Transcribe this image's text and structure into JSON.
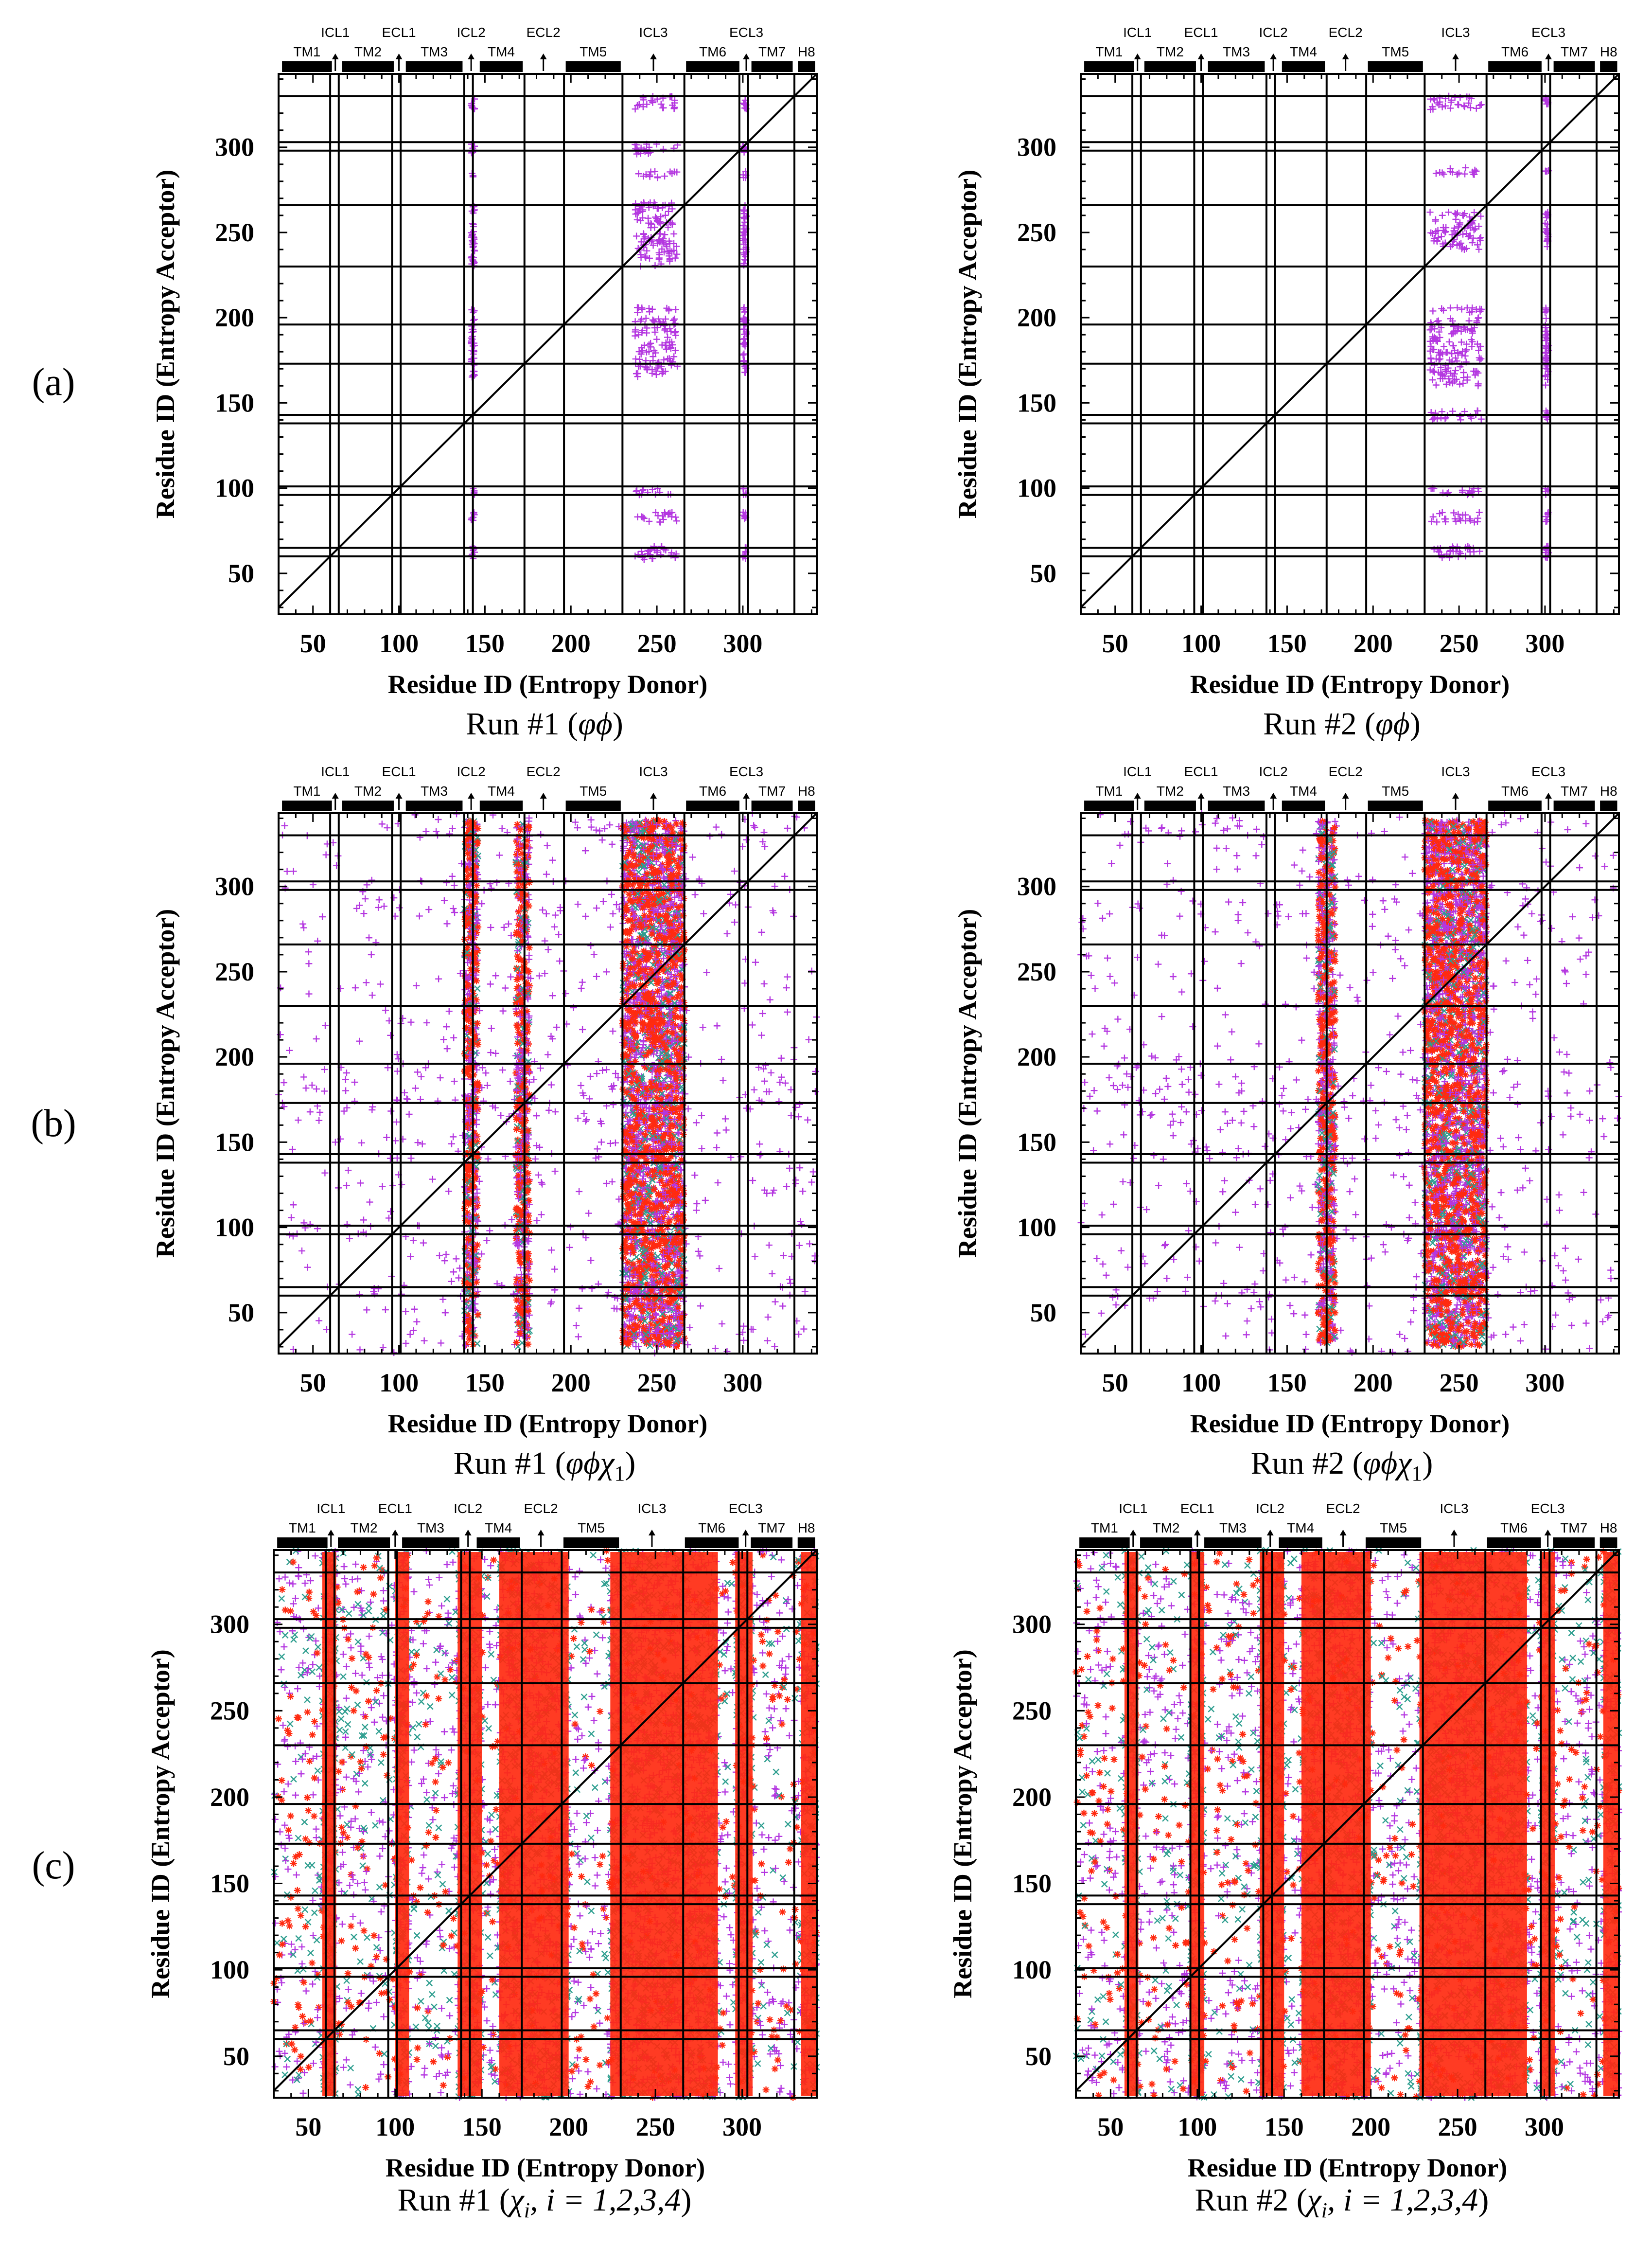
{
  "figure": {
    "markers": {
      "cross_color": "#B437E0",
      "x_color": "#2E9E8F",
      "star_color": "#FF2A10"
    },
    "segment_bar_color": "#000000",
    "shared_axes": {
      "xlabel": "Residue ID (Entropy Donor)",
      "ylabel": "Residue ID (Entropy Acceptor)",
      "xlim": [
        30,
        343
      ],
      "ylim": [
        26,
        343
      ],
      "xticks": [
        50,
        100,
        150,
        200,
        250,
        300
      ],
      "yticks": [
        50,
        100,
        150,
        200,
        250,
        300
      ]
    },
    "segments_bar": [
      {
        "label": "TM1",
        "start": 32,
        "end": 61
      },
      {
        "label": "TM2",
        "start": 67,
        "end": 97
      },
      {
        "label": "TM3",
        "start": 104,
        "end": 137
      },
      {
        "label": "TM4",
        "start": 147,
        "end": 172
      },
      {
        "label": "TM5",
        "start": 197,
        "end": 229
      },
      {
        "label": "TM6",
        "start": 267,
        "end": 298
      },
      {
        "label": "TM7",
        "start": 305,
        "end": 329
      },
      {
        "label": "H8",
        "start": 332,
        "end": 342
      }
    ],
    "segment_arrows": [
      {
        "label": "ICL1",
        "pos": 63
      },
      {
        "label": "ECL1",
        "pos": 100
      },
      {
        "label": "ICL2",
        "pos": 142
      },
      {
        "label": "ECL2",
        "pos": 184
      },
      {
        "label": "ICL3",
        "pos": 248
      },
      {
        "label": "ECL3",
        "pos": 302
      }
    ],
    "boundary_lines": [
      60,
      65,
      96,
      101,
      138,
      143,
      173,
      196,
      230,
      266,
      298,
      303,
      330
    ]
  },
  "chart_data": [
    {
      "type": "scatter",
      "panel": "(a)",
      "title": "Run #1 (φϕ)",
      "xlabel": "Residue ID (Entropy Donor)",
      "ylabel": "Residue ID (Entropy Acceptor)",
      "xlim": [
        30,
        343
      ],
      "ylim": [
        26,
        343
      ],
      "diagonal": true,
      "series": [
        {
          "name": "cross",
          "marker": "+",
          "color": "#B437E0",
          "donor_columns": [
            [
              237,
              262
            ],
            [
              142,
              144
            ],
            [
              300,
              302
            ]
          ],
          "acceptor_rows": [
            [
              58,
              66
            ],
            [
              80,
              86
            ],
            [
              96,
              100
            ],
            [
              165,
              200
            ],
            [
              203,
              206
            ],
            [
              230,
              268
            ],
            [
              282,
              286
            ],
            [
              296,
              302
            ],
            [
              322,
              330
            ]
          ]
        }
      ]
    },
    {
      "type": "scatter",
      "panel": "(a)",
      "title": "Run #2 (φϕ)",
      "xlabel": "Residue ID (Entropy Donor)",
      "ylabel": "Residue ID (Entropy Acceptor)",
      "xlim": [
        30,
        343
      ],
      "ylim": [
        26,
        343
      ],
      "diagonal": true,
      "series": [
        {
          "name": "cross",
          "marker": "+",
          "color": "#B437E0",
          "donor_columns": [
            [
              233,
              263
            ],
            [
              300,
              302
            ]
          ],
          "acceptor_rows": [
            [
              58,
              66
            ],
            [
              80,
              86
            ],
            [
              96,
              100
            ],
            [
              140,
              146
            ],
            [
              160,
              200
            ],
            [
              203,
              206
            ],
            [
              240,
              262
            ],
            [
              284,
              288
            ],
            [
              322,
              330
            ]
          ]
        }
      ]
    },
    {
      "type": "scatter",
      "panel": "(b)",
      "title": "Run #1 (φϕχ1)",
      "xlabel": "Residue ID (Entropy Donor)",
      "ylabel": "Residue ID (Entropy Acceptor)",
      "xlim": [
        30,
        343
      ],
      "ylim": [
        26,
        343
      ],
      "diagonal": true,
      "series": [
        {
          "name": "cross",
          "marker": "+",
          "color": "#B437E0"
        },
        {
          "name": "x",
          "marker": "x",
          "color": "#2E9E8F"
        },
        {
          "name": "star",
          "marker": "*",
          "color": "#FF2A10"
        }
      ],
      "dense_donor_bands": [
        [
          230,
          266
        ],
        [
          138,
          146
        ],
        [
          168,
          176
        ]
      ]
    },
    {
      "type": "scatter",
      "panel": "(b)",
      "title": "Run #2 (φϕχ1)",
      "xlabel": "Residue ID (Entropy Donor)",
      "ylabel": "Residue ID (Entropy Acceptor)",
      "xlim": [
        30,
        343
      ],
      "ylim": [
        26,
        343
      ],
      "diagonal": true,
      "series": [
        {
          "name": "cross",
          "marker": "+",
          "color": "#B437E0"
        },
        {
          "name": "x",
          "marker": "x",
          "color": "#2E9E8F"
        },
        {
          "name": "star",
          "marker": "*",
          "color": "#FF2A10"
        }
      ],
      "dense_donor_bands": [
        [
          230,
          266
        ],
        [
          168,
          178
        ]
      ]
    },
    {
      "type": "scatter",
      "panel": "(c)",
      "title": "Run #1 (χi, i = 1,2,3,4)",
      "xlabel": "Residue ID (Entropy Donor)",
      "ylabel": "Residue ID (Entropy Acceptor)",
      "xlim": [
        30,
        343
      ],
      "ylim": [
        26,
        343
      ],
      "diagonal": true,
      "series": [
        {
          "name": "cross",
          "marker": "+",
          "color": "#B437E0"
        },
        {
          "name": "x",
          "marker": "x",
          "color": "#2E9E8F"
        },
        {
          "name": "star",
          "marker": "*",
          "color": "#FF2A10"
        }
      ],
      "dense_donor_bands": [
        [
          58,
          66
        ],
        [
          100,
          108
        ],
        [
          136,
          150
        ],
        [
          160,
          200
        ],
        [
          224,
          286
        ],
        [
          296,
          306
        ],
        [
          334,
          343
        ]
      ]
    },
    {
      "type": "scatter",
      "panel": "(c)",
      "title": "Run #2 (χi, i = 1,2,3,4)",
      "xlabel": "Residue ID (Entropy Donor)",
      "ylabel": "Residue ID (Entropy Acceptor)",
      "xlim": [
        30,
        343
      ],
      "ylim": [
        26,
        343
      ],
      "diagonal": true,
      "series": [
        {
          "name": "cross",
          "marker": "+",
          "color": "#B437E0"
        },
        {
          "name": "x",
          "marker": "x",
          "color": "#2E9E8F"
        },
        {
          "name": "star",
          "marker": "*",
          "color": "#FF2A10"
        }
      ],
      "dense_donor_bands": [
        [
          58,
          66
        ],
        [
          96,
          104
        ],
        [
          136,
          150
        ],
        [
          160,
          200
        ],
        [
          228,
          290
        ],
        [
          298,
          306
        ],
        [
          334,
          343
        ]
      ]
    }
  ],
  "row_labels": [
    "(a)",
    "(b)",
    "(c)"
  ],
  "panel_titles": {
    "a1": {
      "run": "Run #1 (",
      "sym": "φϕ",
      "end": ")"
    },
    "a2": {
      "run": "Run #2 (",
      "sym": "φϕ",
      "end": ")"
    },
    "b1": {
      "run": "Run #1 (",
      "sym": "φϕχ",
      "sub": "1",
      "end": ")"
    },
    "b2": {
      "run": "Run #2 (",
      "sym": "φϕχ",
      "sub": "1",
      "end": ")"
    },
    "c1": {
      "run": "Run #1 (",
      "sym": "χ",
      "sub": "i",
      "rest": ", i = 1,2,3,4",
      "end": ")"
    },
    "c2": {
      "run": "Run #2 (",
      "sym": "χ",
      "sub": "i",
      "rest": ", i = 1,2,3,4",
      "end": ")"
    }
  }
}
